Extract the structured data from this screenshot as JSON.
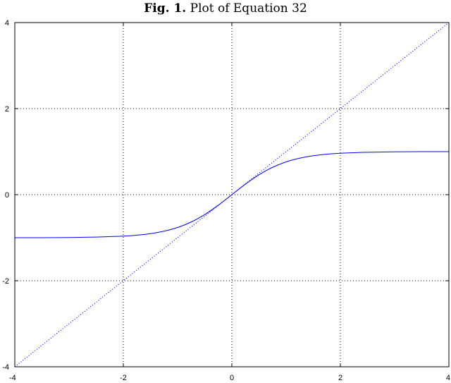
{
  "title": {
    "prefix": "Fig. 1.",
    "text": "Plot of Equation 32"
  },
  "chart_data": {
    "type": "line",
    "title": "Fig. 1. Plot of Equation 32",
    "xlabel": "",
    "ylabel": "",
    "xlim": [
      -4,
      4
    ],
    "ylim": [
      -4,
      4
    ],
    "xticks": [
      -4,
      -2,
      0,
      2,
      4
    ],
    "yticks": [
      -4,
      -2,
      0,
      2,
      4
    ],
    "xtick_labels": [
      "-4",
      "-2",
      "0",
      "2",
      "4"
    ],
    "ytick_labels": [
      "-4",
      "-2",
      "0",
      "2",
      "4"
    ],
    "grid": true,
    "series": [
      {
        "style": "solid",
        "color": "#0000ff",
        "x": [
          -4,
          -3.5,
          -3,
          -2.5,
          -2,
          -1.75,
          -1.5,
          -1.25,
          -1,
          -0.75,
          -0.5,
          -0.25,
          0,
          0.25,
          0.5,
          0.75,
          1,
          1.25,
          1.5,
          1.75,
          2,
          2.5,
          3,
          3.5,
          4
        ],
        "y": [
          -1.0,
          -0.999,
          -0.995,
          -0.985,
          -0.964,
          -0.941,
          -0.905,
          -0.848,
          -0.762,
          -0.635,
          -0.462,
          -0.245,
          0.0,
          0.245,
          0.462,
          0.635,
          0.762,
          0.848,
          0.905,
          0.941,
          0.964,
          0.985,
          0.995,
          0.999,
          1.0
        ]
      },
      {
        "style": "dotted",
        "color": "#0000ff",
        "x": [
          -4,
          4
        ],
        "y": [
          -4,
          4
        ]
      }
    ]
  }
}
